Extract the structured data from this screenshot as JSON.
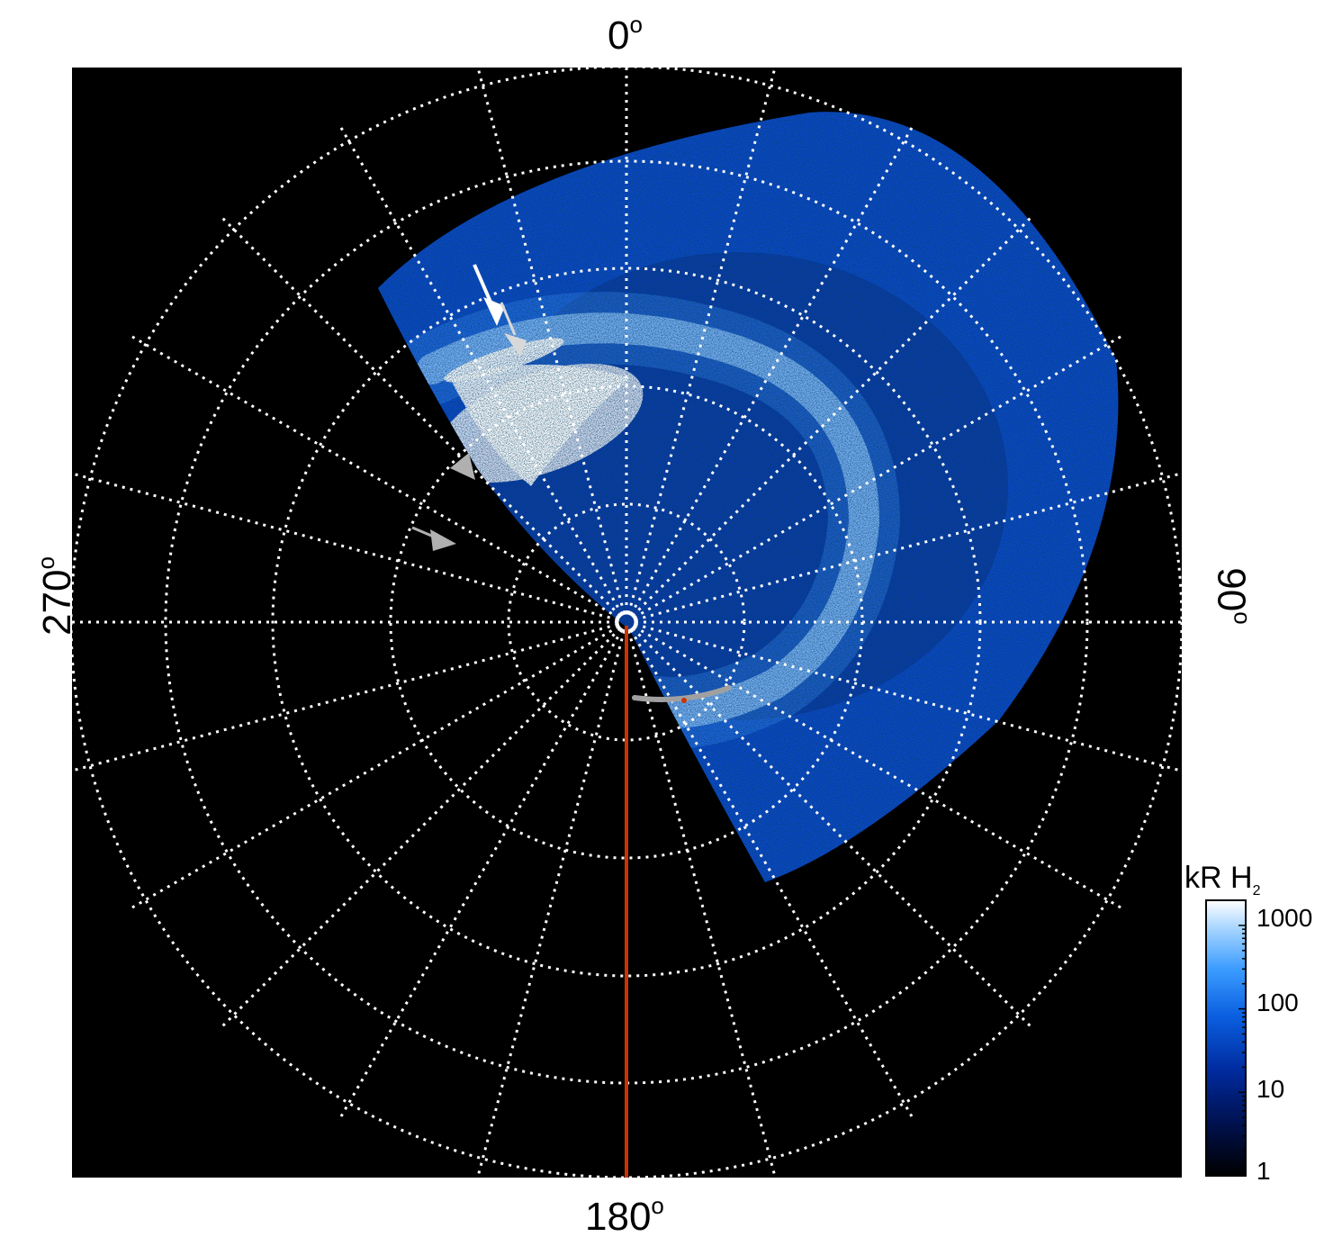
{
  "azimuth_labels": {
    "top": "0",
    "right": "90",
    "bottom": "180",
    "left": "270",
    "degree_symbol": "o"
  },
  "colorbar": {
    "title_main": "kR H",
    "title_sub": "2",
    "ticks": [
      "1000",
      "100",
      "10",
      "1"
    ],
    "scale": "log",
    "range": [
      1,
      2000
    ],
    "colors": [
      "#000000",
      "#00104a",
      "#002a9e",
      "#0a5fe0",
      "#3b9cff",
      "#a8d6ff",
      "#ffffff"
    ]
  },
  "colors": {
    "background": "#000000",
    "grid": "#ffffff",
    "meridian_line": "#cc3300",
    "arrow_white": "#ffffff",
    "arrow_gray": "#b0b0b0",
    "trace_gray": "#a0a0a0"
  }
}
